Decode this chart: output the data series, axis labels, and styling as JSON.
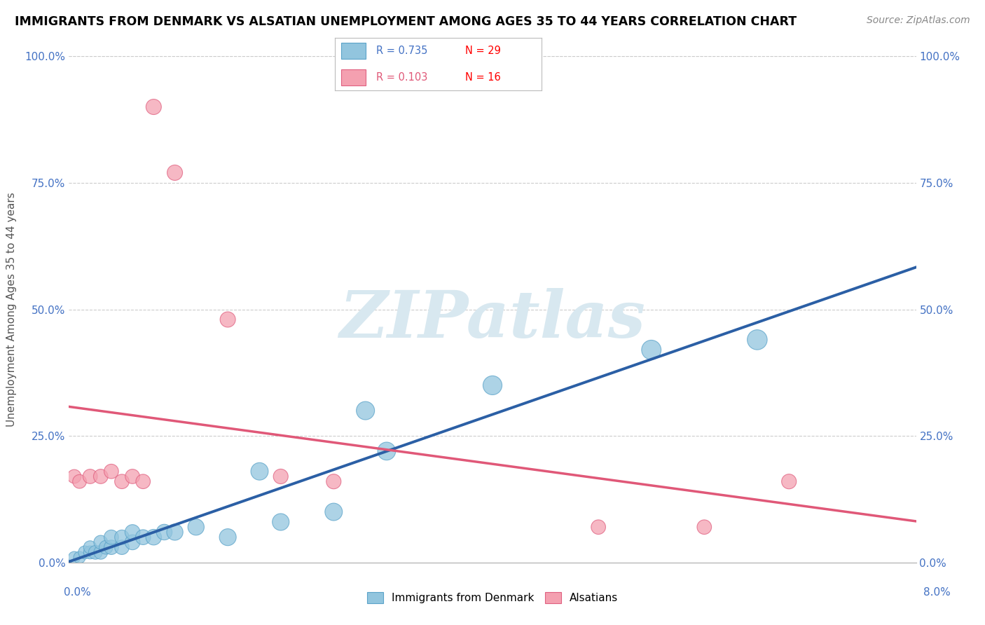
{
  "title": "IMMIGRANTS FROM DENMARK VS ALSATIAN UNEMPLOYMENT AMONG AGES 35 TO 44 YEARS CORRELATION CHART",
  "source": "Source: ZipAtlas.com",
  "ylabel": "Unemployment Among Ages 35 to 44 years",
  "xlim": [
    0.0,
    0.08
  ],
  "ylim": [
    0.0,
    1.0
  ],
  "ytick_vals": [
    0.0,
    0.25,
    0.5,
    0.75,
    1.0
  ],
  "ytick_labels": [
    "0.0%",
    "25.0%",
    "50.0%",
    "75.0%",
    "100.0%"
  ],
  "legend_r1": "R = 0.735",
  "legend_n1": "N = 29",
  "legend_r2": "R = 0.103",
  "legend_n2": "N = 16",
  "color_blue": "#92C5DE",
  "color_blue_edge": "#5BA3C9",
  "color_pink": "#F4A0B0",
  "color_pink_edge": "#E06080",
  "color_trendline_blue": "#2B5FA5",
  "color_trendline_pink": "#E05878",
  "legend_r1_color": "#4472C4",
  "legend_n1_color": "#FF0000",
  "legend_r2_color": "#E05878",
  "legend_n2_color": "#FF0000",
  "watermark_color": "#D8E8F0",
  "watermark_text": "ZIPatlas",
  "background_color": "#ffffff",
  "blue_x": [
    0.0005,
    0.001,
    0.0015,
    0.002,
    0.002,
    0.0025,
    0.003,
    0.003,
    0.0035,
    0.004,
    0.004,
    0.005,
    0.005,
    0.006,
    0.006,
    0.007,
    0.008,
    0.009,
    0.01,
    0.012,
    0.015,
    0.018,
    0.02,
    0.025,
    0.028,
    0.03,
    0.04,
    0.055,
    0.065
  ],
  "blue_y": [
    0.01,
    0.01,
    0.02,
    0.02,
    0.03,
    0.02,
    0.02,
    0.04,
    0.03,
    0.03,
    0.05,
    0.03,
    0.05,
    0.04,
    0.06,
    0.05,
    0.05,
    0.06,
    0.06,
    0.07,
    0.05,
    0.18,
    0.08,
    0.1,
    0.3,
    0.22,
    0.35,
    0.42,
    0.44
  ],
  "blue_sizes": [
    150,
    150,
    180,
    180,
    180,
    200,
    200,
    200,
    200,
    220,
    220,
    220,
    220,
    240,
    240,
    240,
    260,
    260,
    280,
    280,
    300,
    320,
    300,
    320,
    350,
    340,
    380,
    400,
    420
  ],
  "pink_x": [
    0.0005,
    0.001,
    0.002,
    0.003,
    0.004,
    0.005,
    0.006,
    0.007,
    0.008,
    0.01,
    0.015,
    0.02,
    0.025,
    0.05,
    0.06,
    0.068
  ],
  "pink_y": [
    0.17,
    0.16,
    0.17,
    0.17,
    0.18,
    0.16,
    0.17,
    0.16,
    0.9,
    0.77,
    0.48,
    0.17,
    0.16,
    0.07,
    0.07,
    0.16
  ],
  "pink_sizes": [
    200,
    200,
    220,
    220,
    220,
    220,
    220,
    220,
    250,
    250,
    250,
    230,
    230,
    220,
    220,
    230
  ]
}
